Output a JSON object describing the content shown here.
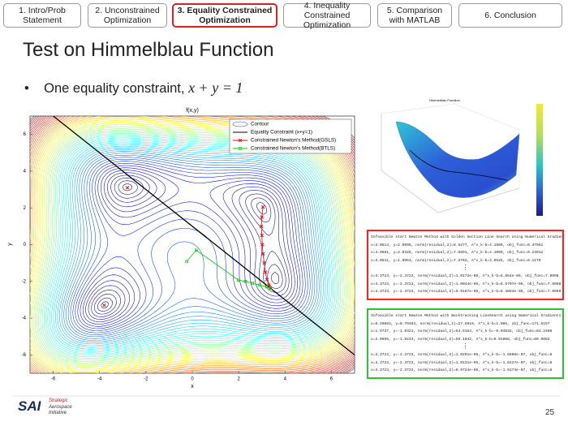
{
  "nav": {
    "tabs": [
      "1. Intro/Prob\nStatement",
      "2. Unconstrained\nOptimization",
      "3. Equality Constrained\nOptimization",
      "4. Inequality Constrained\nOptimization",
      "5. Comparison\nwith MATLAB",
      "6. Conclusion"
    ],
    "active": 2
  },
  "slide": {
    "title": "Test on Himmelblau Function",
    "bullet": "One equality constraint, ",
    "bullet_math": "x + y = 1",
    "page_number": "25"
  },
  "chart_data": {
    "type": "contour",
    "title": "f(x,y)",
    "x_label": "x",
    "y_label": "y",
    "xlim": [
      -7,
      7
    ],
    "ylim": [
      -7,
      7
    ],
    "xticks": [
      -6,
      -4,
      -2,
      0,
      2,
      4,
      6
    ],
    "yticks": [
      -6,
      -4,
      -2,
      0,
      2,
      4,
      6
    ],
    "legend_position": "upper right",
    "contour_label": "Contour",
    "series": [
      {
        "name": "Equality Constraint (x+y=1)",
        "color": "#000000",
        "marker": "none",
        "x": [
          -6,
          7
        ],
        "y": [
          7,
          -6
        ]
      },
      {
        "name": "Constrained Newton's Method(GSLS)",
        "color": "#ff0000",
        "marker": "x",
        "x": [
          3.05,
          3.0,
          2.98,
          3.0,
          3.02,
          3.05,
          3.1,
          3.15,
          3.22,
          3.3,
          3.37
        ],
        "y": [
          2.05,
          1.5,
          1.0,
          0.5,
          0.0,
          -0.5,
          -1.0,
          -1.5,
          -1.9,
          -2.2,
          -2.37
        ]
      },
      {
        "name": "Constrained Newton's Method(BTLS)",
        "color": "#00cc00",
        "marker": "square",
        "x": [
          -0.24,
          0.17,
          1.99,
          2.3,
          2.6,
          2.9,
          3.2,
          3.37
        ],
        "y": [
          -0.92,
          -0.3,
          -1.93,
          -2.0,
          -2.1,
          -2.2,
          -2.3,
          -2.37
        ]
      }
    ],
    "markers": {
      "color": "#ff0000",
      "x": [
        -2.8,
        -3.8
      ],
      "y": [
        3.1,
        -3.3
      ]
    }
  },
  "surface_plot": {
    "title": "Himmelblau Function"
  },
  "logs": [
    {
      "color": "#ff2020",
      "lines": [
        "Infeasible start Newton Method with Golden Section Line Search using Numerical Gradients",
        "x=3.0514, y=2.0995, norm(residual,2)=8.5277, A*x_k-b=4.1509, obj_func=0.37951",
        "x=3.0681, y=2.0328, norm(residual,2)=7.5891, A*x_k-b=4.1009, obj_func=0.23912",
        "x=3.0511, y=1.9954, norm(residual,2)=7.3762, A*x_k-b=4.0525, obj_func=0.1179",
        "⋮",
        "x=3.3723, y=-2.3723, norm(residual,2)=1.0172e-05, A*x_k-b=6.654e-06, obj_func=7.9998",
        "x=3.3723, y=-2.3723, norm(residual,2)=1.0044e-05, A*x_k-b=6.5707e-06, obj_func=7.9998",
        "x=3.3723, y=-2.3723, norm(residual,2)=9.9187e-06, A*x_k-b=6.4884e-06, obj_func=7.9999"
      ]
    },
    {
      "color": "#30c030",
      "lines": [
        "Infeasible start Newton Method with Backtracking LineSearch using Numerical Gradients",
        "x=0.20863, y=0.79463, norm(residual,2)=27.6919, A*x_k-b=1.085, obj_func=171.5157",
        "x=1.9737, y=-1.9321, norm(residual,2)=63.5154, A*x_k-b=-0.04832, obj_func=83.2408",
        "x=2.0056, y=-1.9243, norm(residual,2)=59.1042, A*x_k-b=0.91868, obj_func=80.9082",
        "⋮",
        "x=3.3723, y=-2.3723, norm(residual,2)=1.0291e-05, A*x_k-b=-1.6608e-07, obj_func=8",
        "x=3.3723, y=-2.3723, norm(residual,2)=1.0131e-05, A*x_k-b=-1.6427e-07, obj_func=8",
        "x=3.3723, y=-2.3723, norm(residual,2)=9.9724e-06, A*x_k-b=-1.6174e-07, obj_func=8"
      ]
    }
  ],
  "logo": {
    "name": "SAI",
    "lines": [
      "Strategic",
      "Aerospace",
      "Initiative"
    ]
  }
}
